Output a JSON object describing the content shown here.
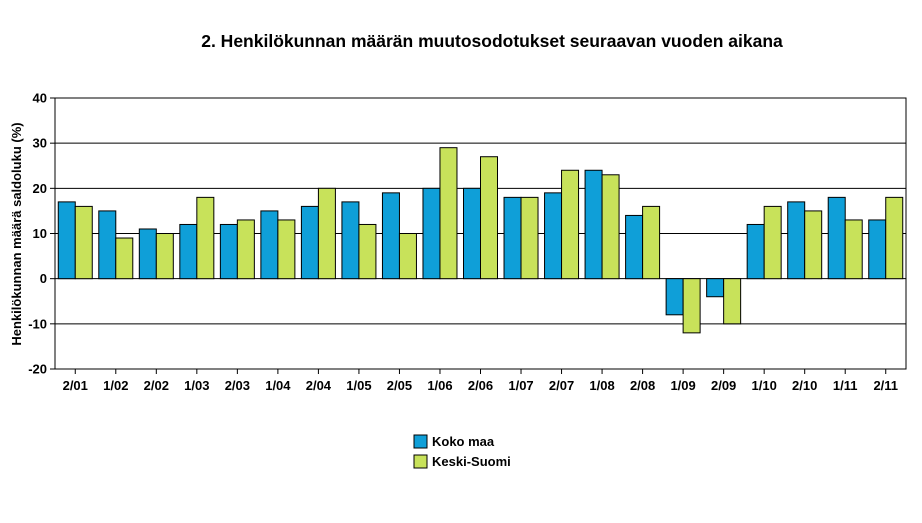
{
  "chart_data": {
    "type": "bar",
    "title": "2. Henkilökunnan määrän muutosodotukset seuraavan vuoden aikana",
    "xlabel": "",
    "ylabel": "Henkilökunnan määrä saldoluku (%)",
    "ylim": [
      -20,
      40
    ],
    "yticks": [
      40,
      30,
      20,
      10,
      0,
      -10,
      -20
    ],
    "ytick_labels": [
      "40",
      "30",
      "20",
      "10",
      "0",
      "-10",
      "-20"
    ],
    "grid": true,
    "legend": "bottom-center",
    "categories": [
      "2/01",
      "1/02",
      "2/02",
      "1/03",
      "2/03",
      "1/04",
      "2/04",
      "1/05",
      "2/05",
      "1/06",
      "2/06",
      "1/07",
      "2/07",
      "1/08",
      "2/08",
      "1/09",
      "2/09",
      "1/10",
      "2/10",
      "1/11",
      "2/11"
    ],
    "series": [
      {
        "name": "Koko maa",
        "color": "#0f9fd8",
        "values": [
          17,
          15,
          11,
          12,
          12,
          15,
          16,
          17,
          19,
          20,
          20,
          18,
          19,
          24,
          14,
          -8,
          -4,
          12,
          17,
          18,
          13
        ]
      },
      {
        "name": "Keski-Suomi",
        "color": "#c8e25a",
        "values": [
          16,
          9,
          10,
          18,
          13,
          13,
          20,
          12,
          10,
          29,
          27,
          18,
          24,
          23,
          16,
          -12,
          -10,
          16,
          15,
          13,
          18
        ]
      }
    ]
  }
}
